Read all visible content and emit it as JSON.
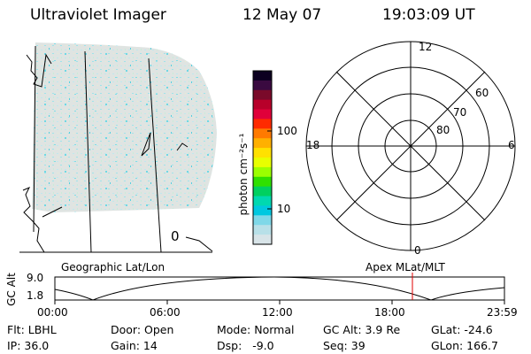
{
  "header": {
    "instrument": "Ultraviolet Imager",
    "date": "12 May 07",
    "time": "19:03:09 UT"
  },
  "colorbar": {
    "label": "photon cm⁻²s⁻¹",
    "ticks": [
      "100",
      "10"
    ],
    "colors": [
      "#0c0020",
      "#3a0a40",
      "#7a0a2a",
      "#b8002a",
      "#e0003a",
      "#ff2a00",
      "#ff7a00",
      "#ffb000",
      "#ffe100",
      "#e8ff00",
      "#9cff00",
      "#30e000",
      "#00d060",
      "#00d8b0",
      "#00c8e0",
      "#7fd8e8",
      "#b8e0e8",
      "#d8e4e8"
    ]
  },
  "polar_plot": {
    "lat_labels": [
      "80",
      "70",
      "60"
    ],
    "mlt_labels": {
      "top": "12",
      "left": "18",
      "right": "6",
      "bottom": "0"
    }
  },
  "map": {
    "left_label": "Geographic Lat/Lon",
    "right_label": "Apex MLat/MLT",
    "marker": "0"
  },
  "gc_alt_plot": {
    "ylabel": "GC Alt",
    "y_ticks": [
      "9.0",
      "1.8"
    ],
    "x_ticks": [
      "00:00",
      "06:00",
      "12:00",
      "18:00",
      "23:59"
    ],
    "marker_color": "#e00000"
  },
  "info": {
    "filter": "Flt: LBHL",
    "ip": "IP: 36.0",
    "door": "Door: Open",
    "gain": "Gain: 14",
    "mode": "Mode: Normal",
    "dsp": "Dsp:   -9.0",
    "gc_alt": "GC Alt: 3.9 Re",
    "seq": "Seq: 39",
    "glat": "GLat: -24.6",
    "glon": "GLon: 166.7"
  }
}
